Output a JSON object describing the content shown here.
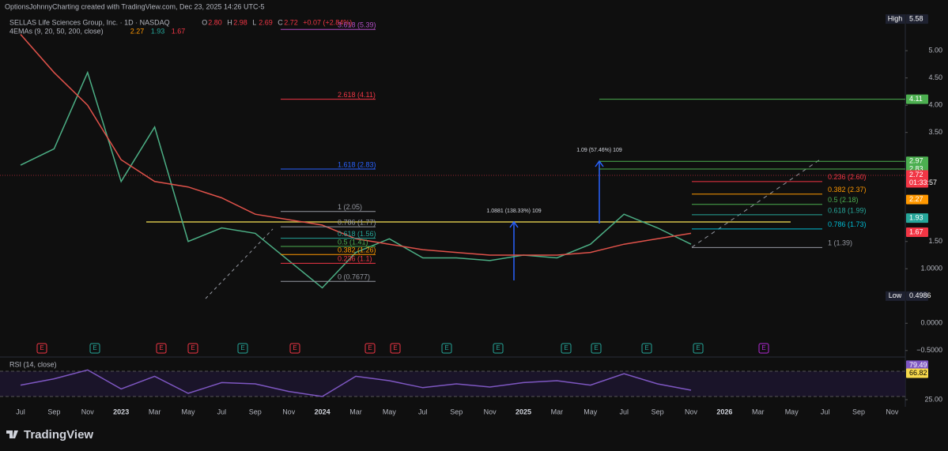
{
  "header": {
    "credit": "OptionsJohnnyCharting created with TradingView.com, Dec 23, 2025 14:26 UTC-5",
    "ohlc": [
      {
        "key": "O",
        "value": "2.80"
      },
      {
        "key": "H",
        "value": "2.98"
      },
      {
        "key": "L",
        "value": "2.69"
      },
      {
        "key": "C",
        "value": "2.72"
      }
    ],
    "change": "+0.07 (+2.84%)",
    "indicator": "4EMAs (9, 20, 50, 200, close)",
    "indicator_values": [
      {
        "text": "2.27",
        "color": "#ff9800"
      },
      {
        "text": "1.93",
        "color": "#26a69a"
      },
      {
        "text": "1.67",
        "color": "#f23645"
      }
    ]
  },
  "chart_data": [
    {
      "type": "line",
      "title": "SELLAS Life Sciences Group, Inc. · 1D · NASDAQ",
      "categories": [
        "Jul",
        "Sep",
        "Nov",
        "2023",
        "Mar",
        "May",
        "Jul",
        "Sep",
        "Nov",
        "2024",
        "Mar",
        "May",
        "Jul",
        "Sep",
        "Nov",
        "2025",
        "Mar",
        "May",
        "Jul",
        "Sep",
        "Nov",
        "2026",
        "Mar",
        "May",
        "Jul",
        "Sep",
        "Nov"
      ],
      "series": [
        {
          "color": "#4caf85",
          "values": [
            2.9,
            3.2,
            4.6,
            2.6,
            3.6,
            1.5,
            1.75,
            1.65,
            1.15,
            0.65,
            1.3,
            1.55,
            1.2,
            1.2,
            1.15,
            1.25,
            1.2,
            1.45,
            2.0,
            1.75,
            1.45,
            null,
            null,
            null,
            null,
            null,
            null
          ]
        },
        {
          "color": "#e0524a",
          "values": [
            5.3,
            4.6,
            4.0,
            3.0,
            2.6,
            2.5,
            2.3,
            2.0,
            1.9,
            1.8,
            1.55,
            1.45,
            1.35,
            1.3,
            1.25,
            1.25,
            1.25,
            1.3,
            1.45,
            1.55,
            1.65,
            null,
            null,
            null,
            null,
            null,
            null
          ]
        }
      ],
      "ylim": [
        -0.59,
        5.64
      ],
      "yticks": [
        {
          "value": 5,
          "label": "5.00"
        },
        {
          "value": 4.5,
          "label": "4.50"
        },
        {
          "value": 4,
          "label": "4.00"
        },
        {
          "value": 3.5,
          "label": "3.50"
        },
        {
          "value": 1.5,
          "label": "1.50"
        },
        {
          "value": 1,
          "label": "1.0000"
        },
        {
          "value": 0,
          "label": "0.0000"
        },
        {
          "value": -0.5,
          "label": "−0.5000"
        }
      ],
      "price_tags": [
        {
          "label": "High",
          "value": 5.58,
          "color": "#1e2130"
        },
        {
          "value": 4.11,
          "color": "#4caf50"
        },
        {
          "value": 2.97,
          "color": "#4caf50"
        },
        {
          "value": 2.83,
          "color": "#4caf50"
        },
        {
          "value": 2.72,
          "color": "#f23645",
          "sub": "01:33:57"
        },
        {
          "value": 2.27,
          "color": "#ff9800"
        },
        {
          "value": 1.93,
          "color": "#26a69a"
        },
        {
          "value": 1.67,
          "color": "#f23645"
        },
        {
          "label": "Low",
          "value": 0.4986,
          "color": "#1e2130"
        }
      ],
      "fib_left": [
        {
          "value": 5.39,
          "label": "3.618 (5.39)",
          "color": "#b04fc4"
        },
        {
          "value": 4.11,
          "label": "2.618 (4.11)",
          "color": "#f23645"
        },
        {
          "value": 2.83,
          "label": "1.618 (2.83)",
          "color": "#2962ff"
        },
        {
          "value": 2.05,
          "label": "1 (2.05)",
          "color": "#9598a1"
        },
        {
          "value": 1.77,
          "label": "0.786 (1.77)",
          "color": "#9598a1"
        },
        {
          "value": 1.56,
          "label": "0.618 (1.56)",
          "color": "#26a69a"
        },
        {
          "value": 1.41,
          "label": "0.5 (1.41)",
          "color": "#4caf50"
        },
        {
          "value": 1.26,
          "label": "0.382 (1.26)",
          "color": "#ff9800"
        },
        {
          "value": 1.1,
          "label": "0.236 (1.1)",
          "color": "#f23645"
        },
        {
          "value": 0.7677,
          "label": "0 (0.7677)",
          "color": "#9598a1"
        }
      ],
      "fib_right": [
        {
          "value": 2.6,
          "label": "0.236 (2.60)",
          "color": "#f23645"
        },
        {
          "value": 2.37,
          "label": "0.382 (2.37)",
          "color": "#ff9800"
        },
        {
          "value": 2.18,
          "label": "0.5 (2.18)",
          "color": "#4caf50"
        },
        {
          "value": 1.99,
          "label": "0.618 (1.99)",
          "color": "#26a69a"
        },
        {
          "value": 1.73,
          "label": "0.786 (1.73)",
          "color": "#00bcd4"
        },
        {
          "value": 1.39,
          "label": "1 (1.39)",
          "color": "#9598a1"
        }
      ],
      "measures": [
        "1.0881 (138.33%) 109",
        "1.09 (57.46%) 109"
      ],
      "events": [
        {
          "label": "E",
          "color": "#f23645"
        },
        {
          "label": "E",
          "color": "#26a69a"
        },
        {
          "label": "E",
          "color": "#f23645"
        },
        {
          "label": "E",
          "color": "#f23645"
        },
        {
          "label": "E",
          "color": "#26a69a"
        },
        {
          "label": "E",
          "color": "#f23645"
        },
        {
          "label": "E",
          "color": "#f23645"
        },
        {
          "label": "E",
          "color": "#f23645"
        },
        {
          "label": "E",
          "color": "#26a69a"
        },
        {
          "label": "E",
          "color": "#26a69a"
        },
        {
          "label": "E",
          "color": "#26a69a"
        },
        {
          "label": "E",
          "color": "#26a69a"
        },
        {
          "label": "E",
          "color": "#26a69a"
        },
        {
          "label": "E",
          "color": "#26a69a"
        },
        {
          "label": "E",
          "color": "#b22ad4"
        }
      ]
    },
    {
      "type": "line",
      "title": "RSI (14, close)",
      "series": [
        {
          "color": "#7e57c2",
          "values": [
            48,
            58,
            72,
            42,
            62,
            35,
            52,
            50,
            38,
            30,
            62,
            55,
            44,
            50,
            45,
            52,
            55,
            48,
            66,
            50,
            40,
            null,
            null,
            null,
            null,
            null,
            null
          ]
        }
      ],
      "ylim": [
        17.5,
        88.75
      ],
      "yticks": [
        {
          "value": 25,
          "label": "25.00"
        }
      ],
      "price_tags": [
        {
          "value": 79.49,
          "color": "#7e57c2"
        },
        {
          "value": 66.82,
          "color": "#f7d94c",
          "dark": true
        }
      ]
    }
  ],
  "footer": {
    "brand": "TradingView"
  }
}
